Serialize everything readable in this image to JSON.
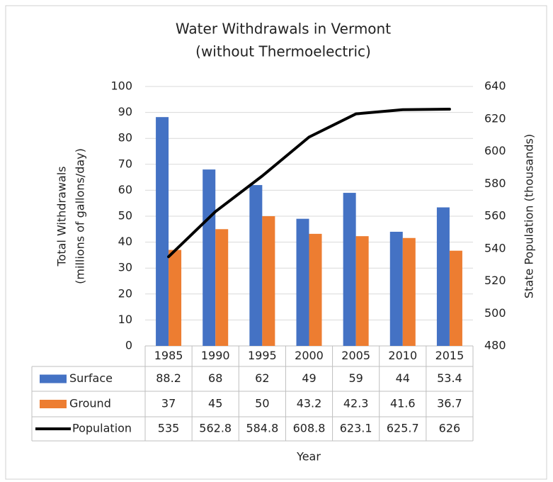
{
  "chart_data": {
    "type": "bar",
    "title": [
      "Water Withdrawals in Vermont",
      "(without Thermoelectric)"
    ],
    "y_label": [
      "Total Withdrawals",
      "(millions of gallons/day)"
    ],
    "y2_label": "State Population (thousands)",
    "x_label": "Year",
    "categories": [
      "1985",
      "1990",
      "1995",
      "2000",
      "2005",
      "2010",
      "2015"
    ],
    "series": [
      {
        "name": "Surface",
        "color": "#4472c4",
        "type": "bar",
        "values": [
          88.2,
          68,
          62,
          49,
          59,
          44,
          53.4
        ]
      },
      {
        "name": "Ground",
        "color": "#ed7d31",
        "type": "bar",
        "values": [
          37,
          45,
          50,
          43.2,
          42.3,
          41.6,
          36.7
        ]
      },
      {
        "name": "Population",
        "color": "#000000",
        "type": "line",
        "axis": "y2",
        "values": [
          535,
          562.8,
          584.8,
          608.8,
          623.1,
          625.7,
          626
        ]
      }
    ],
    "ylim": [
      0,
      100
    ],
    "yticks": [
      0,
      10,
      20,
      30,
      40,
      50,
      60,
      70,
      80,
      90,
      100
    ],
    "y2lim": [
      480,
      640
    ],
    "y2ticks": [
      480,
      500,
      520,
      540,
      560,
      580,
      600,
      620,
      640
    ],
    "grid": true
  }
}
